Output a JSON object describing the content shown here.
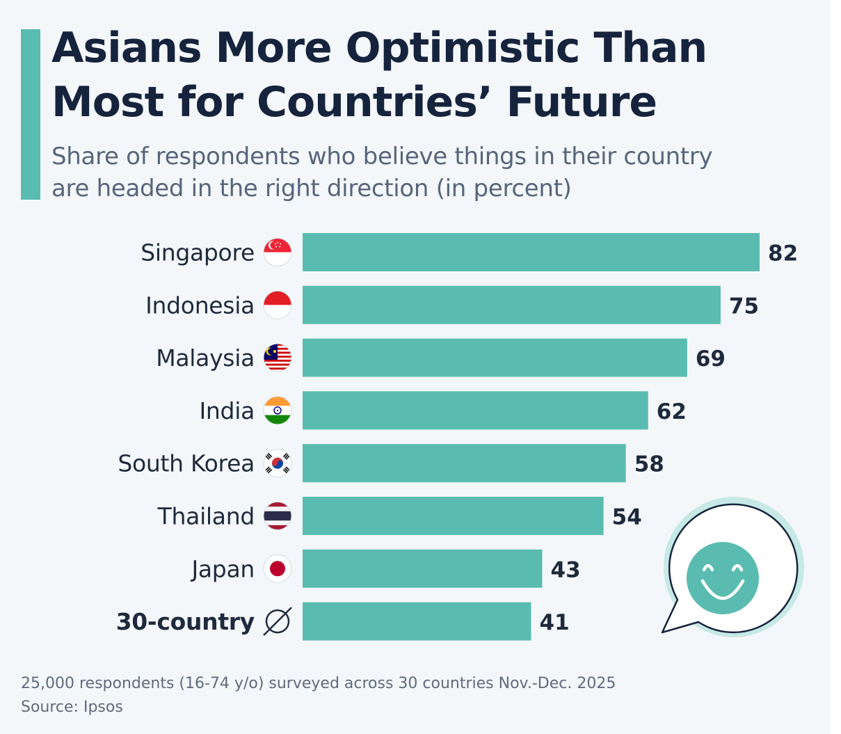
{
  "title_line1": "Asians More Optimistic Than",
  "title_line2": "Most for Countries’ Future",
  "subtitle_line1": "Share of respondents who believe things in their country",
  "subtitle_line2": "are headed in the right direction (in percent)",
  "chart_data": {
    "type": "bar",
    "orientation": "horizontal",
    "title": "Asians More Optimistic Than Most for Countries’ Future",
    "subtitle": "Share of respondents who believe things in their country are headed in the right direction (in percent)",
    "categories": [
      "Singapore",
      "Indonesia",
      "Malaysia",
      "India",
      "South Korea",
      "Thailand",
      "Japan",
      "30-country"
    ],
    "values": [
      82,
      75,
      69,
      62,
      58,
      54,
      43,
      41
    ],
    "flags": [
      "singapore-flag",
      "indonesia-flag",
      "malaysia-flag",
      "india-flag",
      "south-korea-flag",
      "thailand-flag",
      "japan-flag",
      "average-symbol"
    ],
    "highlight_category": "30-country",
    "xlim": [
      0,
      82
    ],
    "xlabel": "",
    "ylabel": "",
    "grid": false,
    "legend": "none",
    "bar_color": "#5abcb0"
  },
  "colors": {
    "accent": "#5abcb0",
    "title": "#16233d",
    "text": "#1e2a3c",
    "bubble_light": "#c6e9e5",
    "bubble_outline": "#16233d"
  },
  "decoration": {
    "icon": "smiley-speech-bubble-icon"
  },
  "footer": {
    "note": "25,000 respondents (16-74 y/o) surveyed across 30 countries Nov.-Dec. 2025",
    "source": "Source: Ipsos"
  }
}
